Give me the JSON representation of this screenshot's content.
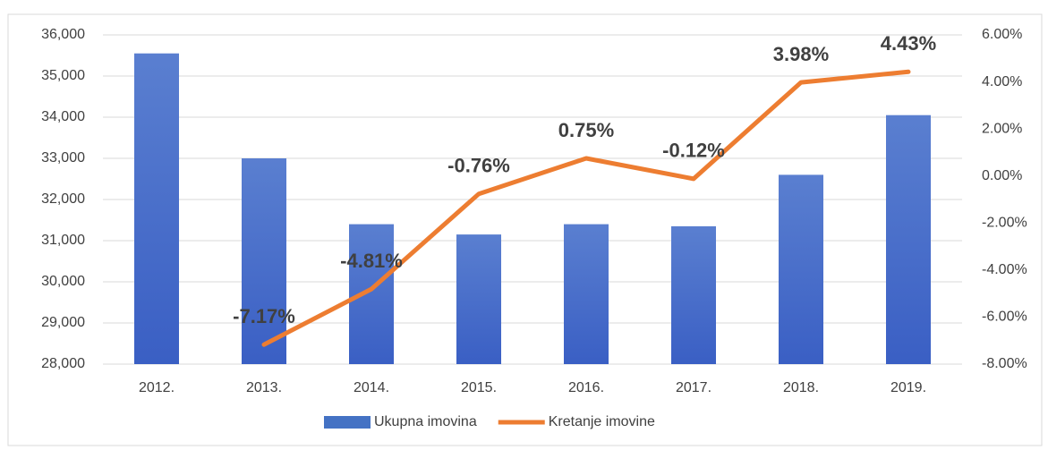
{
  "chart_data": {
    "type": "bar_line",
    "categories": [
      "2012.",
      "2013.",
      "2014.",
      "2015.",
      "2016.",
      "2017.",
      "2018.",
      "2019."
    ],
    "series": [
      {
        "name": "Ukupna imovina",
        "type": "bar",
        "color": "#4472c4",
        "values": [
          35550,
          33000,
          31400,
          31150,
          31400,
          31350,
          32600,
          34050
        ]
      },
      {
        "name": "Kretanje imovine",
        "type": "line",
        "axis": "y2",
        "color": "#ed7d31",
        "values": [
          null,
          -7.17,
          -4.81,
          -0.76,
          0.75,
          -0.12,
          3.98,
          4.43
        ],
        "value_labels": [
          null,
          "-7.17%",
          "-4.81%",
          "-0.76%",
          "0.75%",
          "-0.12%",
          "3.98%",
          "4.43%"
        ]
      }
    ],
    "ylim": [
      28000,
      36000
    ],
    "yticks": [
      {
        "value": 28000,
        "label": "28,000"
      },
      {
        "value": 29000,
        "label": "29,000"
      },
      {
        "value": 30000,
        "label": "30,000"
      },
      {
        "value": 31000,
        "label": "31,000"
      },
      {
        "value": 32000,
        "label": "32,000"
      },
      {
        "value": 33000,
        "label": "33,000"
      },
      {
        "value": 34000,
        "label": "34,000"
      },
      {
        "value": 35000,
        "label": "35,000"
      },
      {
        "value": 36000,
        "label": "36,000"
      }
    ],
    "y2lim": [
      -8,
      6
    ],
    "y2ticks": [
      {
        "value": -8,
        "label": "-8.00%"
      },
      {
        "value": -6,
        "label": "-6.00%"
      },
      {
        "value": -4,
        "label": "-4.00%"
      },
      {
        "value": -2,
        "label": "-2.00%"
      },
      {
        "value": 0,
        "label": "0.00%"
      },
      {
        "value": 2,
        "label": "2.00%"
      },
      {
        "value": 4,
        "label": "4.00%"
      },
      {
        "value": 6,
        "label": "6.00%"
      }
    ],
    "grid": true,
    "legend": "bottom"
  }
}
